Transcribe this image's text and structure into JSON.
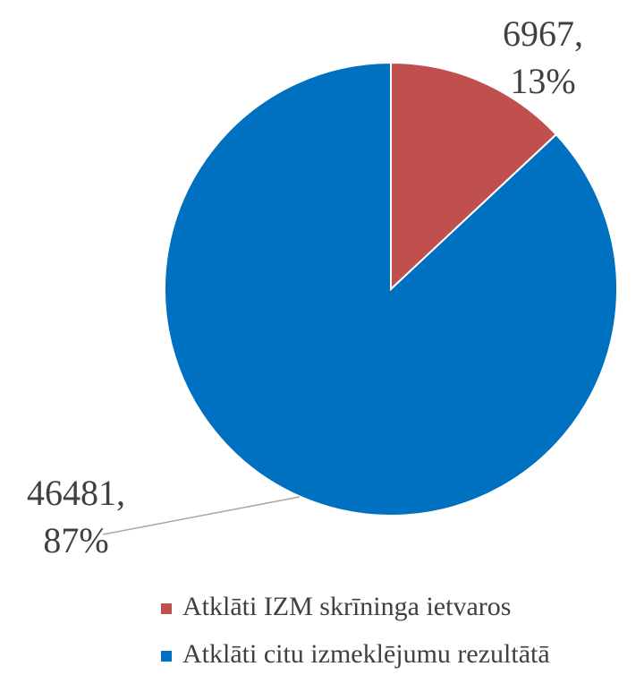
{
  "chart_data": {
    "type": "pie",
    "categories": [
      "Atklāti IZM skrīninga ietvaros",
      "Atklāti citu izmeklējumu rezultātā"
    ],
    "values": [
      6967,
      46481
    ],
    "value_labels": [
      "6967,",
      "46481,"
    ],
    "percent_labels": [
      "13%",
      "87%"
    ],
    "colors": [
      "#c0504d",
      "#0070c0"
    ],
    "legend": "bottom"
  }
}
